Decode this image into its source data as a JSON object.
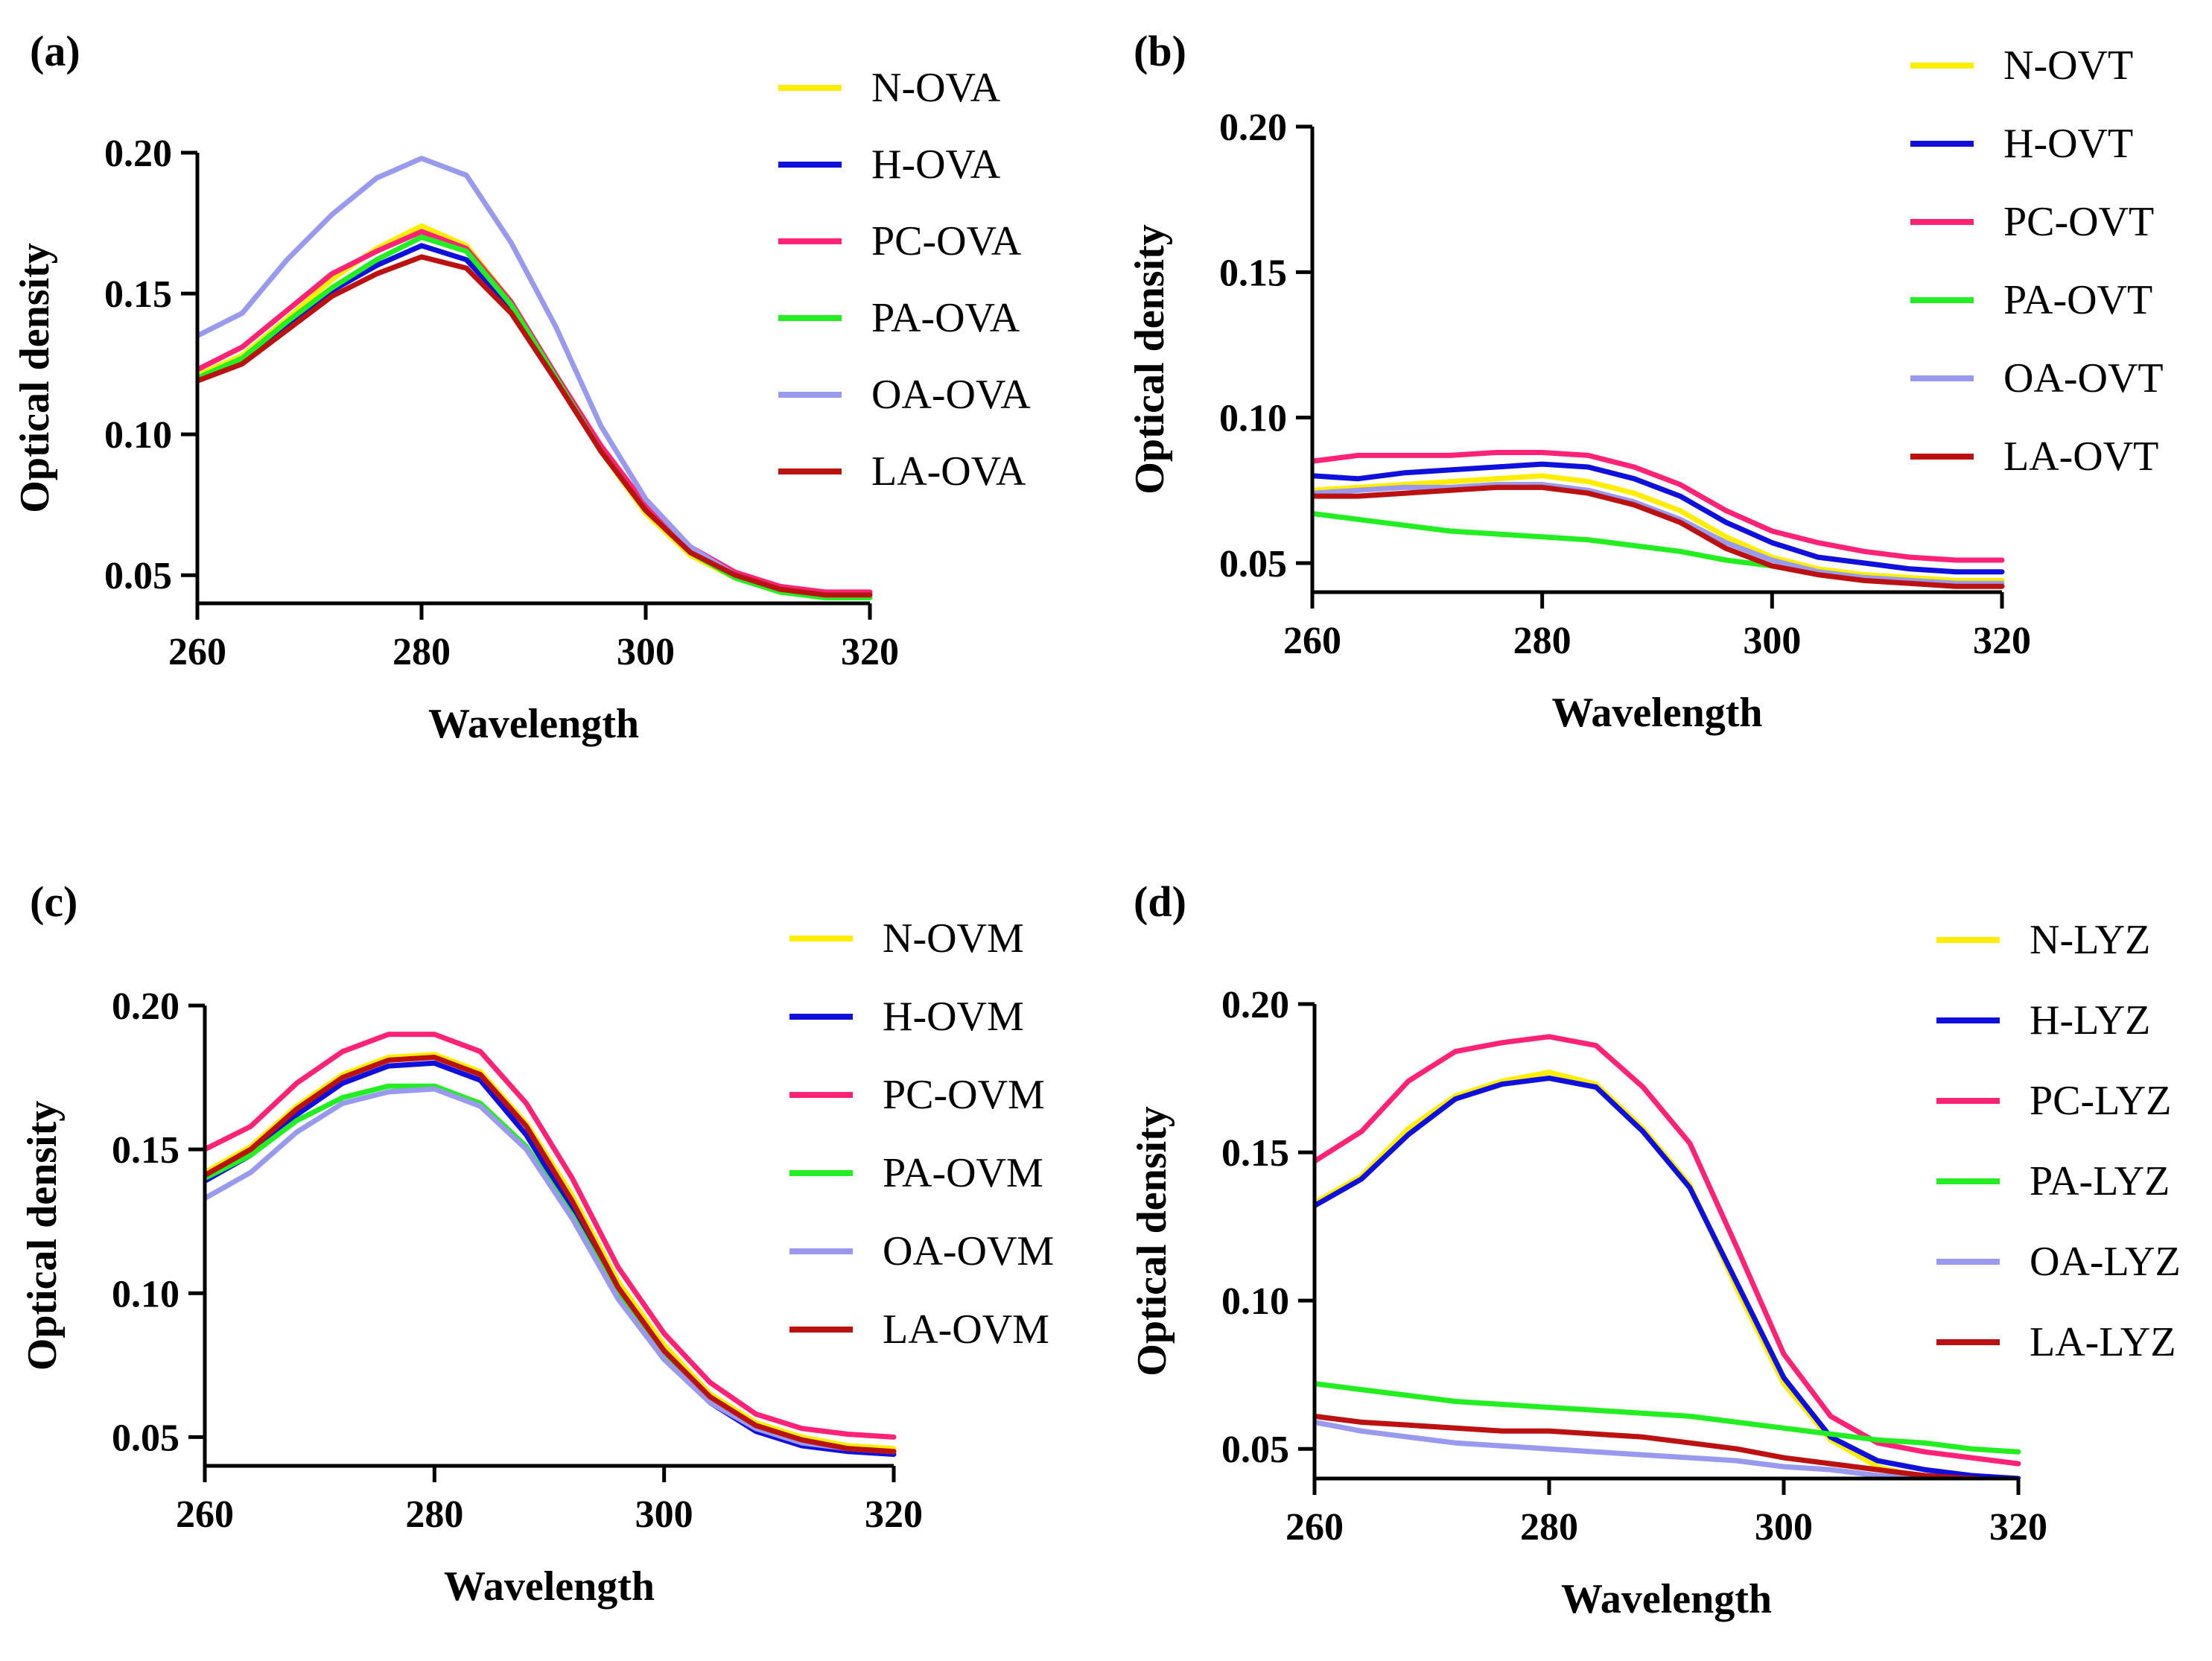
{
  "chart_data": [
    {
      "type": "line",
      "panel": "(a)",
      "xlabel": "Wavelength",
      "ylabel": "Optical density",
      "xlim": [
        260,
        320
      ],
      "ylim": [
        0.04,
        0.2
      ],
      "xticks": [
        "260",
        "280",
        "300",
        "320"
      ],
      "yticks": [
        "0.05",
        "0.10",
        "0.15",
        "0.20"
      ],
      "legend": "right",
      "series": [
        {
          "name": "N-OVA",
          "color": "#ffee00",
          "x": [
            260,
            264,
            268,
            272,
            276,
            280,
            284,
            288,
            292,
            296,
            300,
            304,
            308,
            312,
            316,
            320
          ],
          "y": [
            0.121,
            0.128,
            0.141,
            0.155,
            0.166,
            0.174,
            0.167,
            0.147,
            0.12,
            0.094,
            0.072,
            0.057,
            0.049,
            0.044,
            0.042,
            0.042
          ]
        },
        {
          "name": "H-OVA",
          "color": "#1010dd",
          "x": [
            260,
            264,
            268,
            272,
            276,
            280,
            284,
            288,
            292,
            296,
            300,
            304,
            308,
            312,
            316,
            320
          ],
          "y": [
            0.119,
            0.126,
            0.138,
            0.151,
            0.16,
            0.167,
            0.162,
            0.145,
            0.12,
            0.094,
            0.073,
            0.058,
            0.05,
            0.045,
            0.043,
            0.043
          ]
        },
        {
          "name": "PC-OVA",
          "color": "#ff2277",
          "x": [
            260,
            264,
            268,
            272,
            276,
            280,
            284,
            288,
            292,
            296,
            300,
            304,
            308,
            312,
            316,
            320
          ],
          "y": [
            0.123,
            0.131,
            0.144,
            0.157,
            0.165,
            0.172,
            0.166,
            0.147,
            0.121,
            0.096,
            0.075,
            0.06,
            0.051,
            0.046,
            0.044,
            0.044
          ]
        },
        {
          "name": "PA-OVA",
          "color": "#22ee22",
          "x": [
            260,
            264,
            268,
            272,
            276,
            280,
            284,
            288,
            292,
            296,
            300,
            304,
            308,
            312,
            316,
            320
          ],
          "y": [
            0.12,
            0.127,
            0.14,
            0.152,
            0.162,
            0.17,
            0.165,
            0.146,
            0.12,
            0.094,
            0.073,
            0.058,
            0.049,
            0.044,
            0.042,
            0.042
          ]
        },
        {
          "name": "OA-OVA",
          "color": "#9999ee",
          "x": [
            260,
            264,
            268,
            272,
            276,
            280,
            284,
            288,
            292,
            296,
            300,
            304,
            308,
            312,
            316,
            320
          ],
          "y": [
            0.135,
            0.143,
            0.162,
            0.178,
            0.191,
            0.198,
            0.192,
            0.168,
            0.138,
            0.103,
            0.077,
            0.06,
            0.05,
            0.045,
            0.043,
            0.043
          ]
        },
        {
          "name": "LA-OVA",
          "color": "#bb1111",
          "x": [
            260,
            264,
            268,
            272,
            276,
            280,
            284,
            288,
            292,
            296,
            300,
            304,
            308,
            312,
            316,
            320
          ],
          "y": [
            0.119,
            0.125,
            0.137,
            0.149,
            0.157,
            0.163,
            0.159,
            0.143,
            0.119,
            0.094,
            0.073,
            0.058,
            0.05,
            0.045,
            0.043,
            0.043
          ]
        }
      ]
    },
    {
      "type": "line",
      "panel": "(b)",
      "xlabel": "Wavelength",
      "ylabel": "Optical density",
      "xlim": [
        260,
        320
      ],
      "ylim": [
        0.04,
        0.2
      ],
      "xticks": [
        "260",
        "280",
        "300",
        "320"
      ],
      "yticks": [
        "0.05",
        "0.10",
        "0.15",
        "0.20"
      ],
      "legend": "right",
      "series": [
        {
          "name": "N-OVT",
          "color": "#ffee00",
          "x": [
            260,
            264,
            268,
            272,
            276,
            280,
            284,
            288,
            292,
            296,
            300,
            304,
            308,
            312,
            316,
            320
          ],
          "y": [
            0.075,
            0.076,
            0.077,
            0.078,
            0.079,
            0.08,
            0.078,
            0.074,
            0.068,
            0.059,
            0.052,
            0.048,
            0.046,
            0.045,
            0.044,
            0.044
          ]
        },
        {
          "name": "H-OVT",
          "color": "#1010dd",
          "x": [
            260,
            264,
            268,
            272,
            276,
            280,
            284,
            288,
            292,
            296,
            300,
            304,
            308,
            312,
            316,
            320
          ],
          "y": [
            0.08,
            0.079,
            0.081,
            0.082,
            0.083,
            0.084,
            0.083,
            0.079,
            0.073,
            0.064,
            0.057,
            0.052,
            0.05,
            0.048,
            0.047,
            0.047
          ]
        },
        {
          "name": "PC-OVT",
          "color": "#ff2277",
          "x": [
            260,
            264,
            268,
            272,
            276,
            280,
            284,
            288,
            292,
            296,
            300,
            304,
            308,
            312,
            316,
            320
          ],
          "y": [
            0.085,
            0.087,
            0.087,
            0.087,
            0.088,
            0.088,
            0.087,
            0.083,
            0.077,
            0.068,
            0.061,
            0.057,
            0.054,
            0.052,
            0.051,
            0.051
          ]
        },
        {
          "name": "PA-OVT",
          "color": "#22ee22",
          "x": [
            260,
            264,
            268,
            272,
            276,
            280,
            284,
            288,
            292,
            296,
            300,
            304,
            308,
            312,
            316,
            320
          ],
          "y": [
            0.067,
            0.065,
            0.063,
            0.061,
            0.06,
            0.059,
            0.058,
            0.056,
            0.054,
            0.051,
            0.049,
            0.047,
            0.045,
            0.044,
            0.043,
            0.042
          ]
        },
        {
          "name": "OA-OVT",
          "color": "#9999ee",
          "x": [
            260,
            264,
            268,
            272,
            276,
            280,
            284,
            288,
            292,
            296,
            300,
            304,
            308,
            312,
            316,
            320
          ],
          "y": [
            0.074,
            0.075,
            0.076,
            0.076,
            0.077,
            0.077,
            0.075,
            0.071,
            0.065,
            0.057,
            0.051,
            0.047,
            0.045,
            0.044,
            0.043,
            0.043
          ]
        },
        {
          "name": "LA-OVT",
          "color": "#bb1111",
          "x": [
            260,
            264,
            268,
            272,
            276,
            280,
            284,
            288,
            292,
            296,
            300,
            304,
            308,
            312,
            316,
            320
          ],
          "y": [
            0.073,
            0.073,
            0.074,
            0.075,
            0.076,
            0.076,
            0.074,
            0.07,
            0.064,
            0.055,
            0.049,
            0.046,
            0.044,
            0.043,
            0.042,
            0.042
          ]
        }
      ]
    },
    {
      "type": "line",
      "panel": "(c)",
      "xlabel": "Wavelength",
      "ylabel": "Optical density",
      "xlim": [
        260,
        320
      ],
      "ylim": [
        0.04,
        0.2
      ],
      "xticks": [
        "260",
        "280",
        "300",
        "320"
      ],
      "yticks": [
        "0.05",
        "0.10",
        "0.15",
        "0.20"
      ],
      "legend": "right",
      "series": [
        {
          "name": "N-OVM",
          "color": "#ffee00",
          "x": [
            260,
            264,
            268,
            272,
            276,
            280,
            284,
            288,
            292,
            296,
            300,
            304,
            308,
            312,
            316,
            320
          ],
          "y": [
            0.142,
            0.151,
            0.165,
            0.176,
            0.182,
            0.183,
            0.177,
            0.159,
            0.134,
            0.104,
            0.082,
            0.065,
            0.055,
            0.05,
            0.047,
            0.046
          ]
        },
        {
          "name": "H-OVM",
          "color": "#1010dd",
          "x": [
            260,
            264,
            268,
            272,
            276,
            280,
            284,
            288,
            292,
            296,
            300,
            304,
            308,
            312,
            316,
            320
          ],
          "y": [
            0.139,
            0.148,
            0.162,
            0.173,
            0.179,
            0.18,
            0.174,
            0.155,
            0.129,
            0.1,
            0.078,
            0.062,
            0.052,
            0.047,
            0.045,
            0.044
          ]
        },
        {
          "name": "PC-OVM",
          "color": "#ff2277",
          "x": [
            260,
            264,
            268,
            272,
            276,
            280,
            284,
            288,
            292,
            296,
            300,
            304,
            308,
            312,
            316,
            320
          ],
          "y": [
            0.15,
            0.158,
            0.173,
            0.184,
            0.19,
            0.19,
            0.184,
            0.166,
            0.14,
            0.109,
            0.086,
            0.069,
            0.058,
            0.053,
            0.051,
            0.05
          ]
        },
        {
          "name": "PA-OVM",
          "color": "#22ee22",
          "x": [
            260,
            264,
            268,
            272,
            276,
            280,
            284,
            288,
            292,
            296,
            300,
            304,
            308,
            312,
            316,
            320
          ],
          "y": [
            0.14,
            0.148,
            0.16,
            0.168,
            0.172,
            0.172,
            0.166,
            0.151,
            0.127,
            0.099,
            0.078,
            0.063,
            0.054,
            0.049,
            0.046,
            0.045
          ]
        },
        {
          "name": "OA-OVM",
          "color": "#9999ee",
          "x": [
            260,
            264,
            268,
            272,
            276,
            280,
            284,
            288,
            292,
            296,
            300,
            304,
            308,
            312,
            316,
            320
          ],
          "y": [
            0.133,
            0.142,
            0.156,
            0.166,
            0.17,
            0.171,
            0.165,
            0.15,
            0.126,
            0.098,
            0.077,
            0.062,
            0.053,
            0.048,
            0.046,
            0.045
          ]
        },
        {
          "name": "LA-OVM",
          "color": "#bb1111",
          "x": [
            260,
            264,
            268,
            272,
            276,
            280,
            284,
            288,
            292,
            296,
            300,
            304,
            308,
            312,
            316,
            320
          ],
          "y": [
            0.141,
            0.15,
            0.164,
            0.175,
            0.181,
            0.182,
            0.176,
            0.158,
            0.132,
            0.102,
            0.08,
            0.064,
            0.054,
            0.049,
            0.046,
            0.045
          ]
        }
      ]
    },
    {
      "type": "line",
      "panel": "(d)",
      "xlabel": "Wavelength",
      "ylabel": "Optical density",
      "xlim": [
        260,
        320
      ],
      "ylim": [
        0.04,
        0.2
      ],
      "xticks": [
        "260",
        "280",
        "300",
        "320"
      ],
      "yticks": [
        "0.05",
        "0.10",
        "0.15",
        "0.20"
      ],
      "legend": "right",
      "series": [
        {
          "name": "N-LYZ",
          "color": "#ffee00",
          "x": [
            260,
            264,
            268,
            272,
            276,
            280,
            284,
            288,
            292,
            296,
            300,
            304,
            308,
            312,
            316,
            320
          ],
          "y": [
            0.133,
            0.142,
            0.158,
            0.169,
            0.174,
            0.177,
            0.173,
            0.158,
            0.139,
            0.104,
            0.072,
            0.053,
            0.044,
            0.04,
            0.039,
            0.038
          ]
        },
        {
          "name": "H-LYZ",
          "color": "#1010dd",
          "x": [
            260,
            264,
            268,
            272,
            276,
            280,
            284,
            288,
            292,
            296,
            300,
            304,
            308,
            312,
            316,
            320
          ],
          "y": [
            0.132,
            0.141,
            0.156,
            0.168,
            0.173,
            0.175,
            0.172,
            0.157,
            0.138,
            0.106,
            0.074,
            0.054,
            0.046,
            0.043,
            0.041,
            0.04
          ]
        },
        {
          "name": "PC-LYZ",
          "color": "#ff2277",
          "x": [
            260,
            264,
            268,
            272,
            276,
            280,
            284,
            288,
            292,
            296,
            300,
            304,
            308,
            312,
            316,
            320
          ],
          "y": [
            0.147,
            0.157,
            0.174,
            0.184,
            0.187,
            0.189,
            0.186,
            0.172,
            0.153,
            0.118,
            0.082,
            0.061,
            0.052,
            0.049,
            0.047,
            0.045
          ]
        },
        {
          "name": "PA-LYZ",
          "color": "#22ee22",
          "x": [
            260,
            264,
            268,
            272,
            276,
            280,
            284,
            288,
            292,
            296,
            300,
            304,
            308,
            312,
            316,
            320
          ],
          "y": [
            0.072,
            0.07,
            0.068,
            0.066,
            0.065,
            0.064,
            0.063,
            0.062,
            0.061,
            0.059,
            0.057,
            0.055,
            0.053,
            0.052,
            0.05,
            0.049
          ]
        },
        {
          "name": "OA-LYZ",
          "color": "#9999ee",
          "x": [
            260,
            264,
            268,
            272,
            276,
            280,
            284,
            288,
            292,
            296,
            300,
            304,
            308,
            312,
            316,
            320
          ],
          "y": [
            0.059,
            0.056,
            0.054,
            0.052,
            0.051,
            0.05,
            0.049,
            0.048,
            0.047,
            0.046,
            0.044,
            0.043,
            0.041,
            0.04,
            0.039,
            0.038
          ]
        },
        {
          "name": "LA-LYZ",
          "color": "#bb1111",
          "x": [
            260,
            264,
            268,
            272,
            276,
            280,
            284,
            288,
            292,
            296,
            300,
            304,
            308,
            312,
            316,
            320
          ],
          "y": [
            0.061,
            0.059,
            0.058,
            0.057,
            0.056,
            0.056,
            0.055,
            0.054,
            0.052,
            0.05,
            0.047,
            0.045,
            0.043,
            0.041,
            0.04,
            0.039
          ]
        }
      ]
    }
  ]
}
